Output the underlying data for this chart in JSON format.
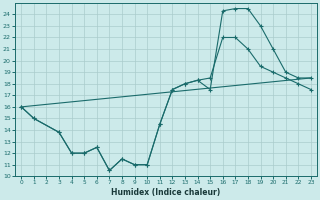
{
  "xlabel": "Humidex (Indice chaleur)",
  "background_color": "#cceaea",
  "line_color": "#1a6b6b",
  "grid_color": "#aacccc",
  "xlim": [
    -0.5,
    23.5
  ],
  "ylim": [
    10,
    25
  ],
  "x_ticks": [
    0,
    1,
    2,
    3,
    4,
    5,
    6,
    7,
    8,
    9,
    10,
    11,
    12,
    13,
    14,
    15,
    16,
    17,
    18,
    19,
    20,
    21,
    22,
    23
  ],
  "y_ticks": [
    10,
    11,
    12,
    13,
    14,
    15,
    16,
    17,
    18,
    19,
    20,
    21,
    22,
    23,
    24
  ],
  "series1_x": [
    0,
    1,
    3,
    4,
    5,
    6,
    7,
    8,
    9,
    10,
    11,
    12,
    13,
    14,
    15,
    16,
    17,
    18,
    19,
    20,
    21,
    22,
    23
  ],
  "series1_y": [
    16,
    15,
    13.8,
    12,
    12,
    12.5,
    10.5,
    11.5,
    11,
    11,
    14.5,
    17.5,
    18,
    18.3,
    17.5,
    24.3,
    24.5,
    24.5,
    23,
    21,
    19,
    18.5,
    18.5
  ],
  "series2_x": [
    0,
    1,
    3,
    4,
    5,
    6,
    7,
    8,
    9,
    10,
    11,
    12,
    13,
    14,
    15,
    16,
    17,
    18,
    19,
    20,
    21,
    22,
    23
  ],
  "series2_y": [
    16,
    15,
    13.8,
    12,
    12,
    12.5,
    10.5,
    11.5,
    11,
    11,
    14.5,
    17.5,
    18,
    18.3,
    18.5,
    22,
    22,
    21,
    19.5,
    19,
    18.5,
    18,
    17.5
  ],
  "series3_x": [
    0,
    23
  ],
  "series3_y": [
    16.0,
    18.5
  ]
}
